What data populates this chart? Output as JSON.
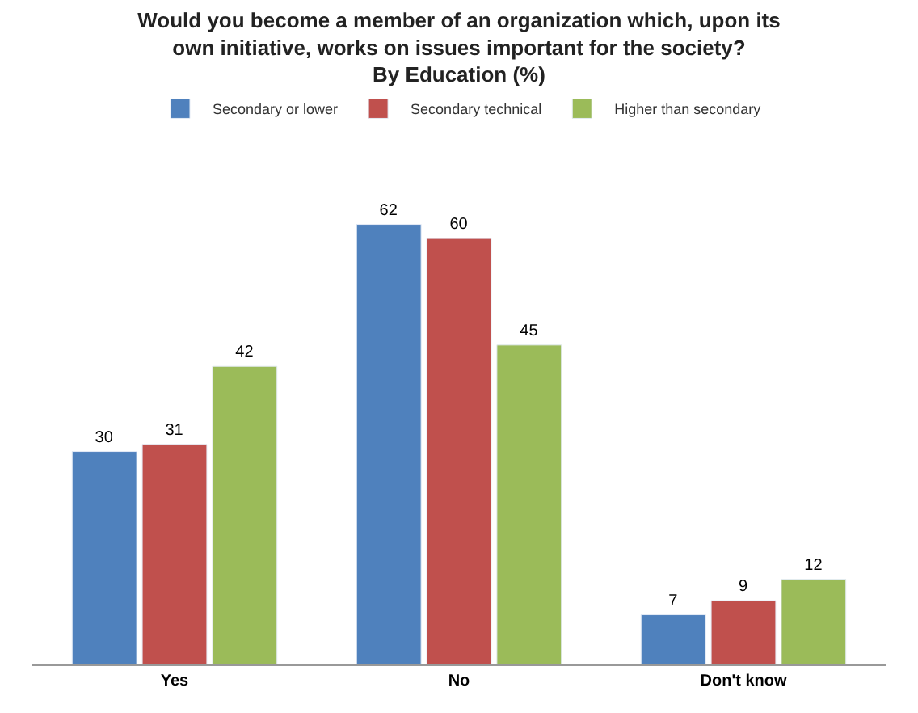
{
  "chart_data": {
    "type": "bar",
    "title": "Would you become a member of an organization which, upon its\nown initiative, works on issues important for the society?\nBy Education (%)",
    "categories": [
      "Yes",
      "No",
      "Don't know"
    ],
    "series": [
      {
        "name": "Secondary or lower",
        "color": "#4f81bd",
        "values": [
          30,
          62,
          7
        ]
      },
      {
        "name": "Secondary technical",
        "color": "#c0504d",
        "values": [
          31,
          60,
          9
        ]
      },
      {
        "name": "Higher than secondary",
        "color": "#9bbb59",
        "values": [
          42,
          45,
          12
        ]
      }
    ],
    "data_labels": true,
    "legend": "top"
  }
}
